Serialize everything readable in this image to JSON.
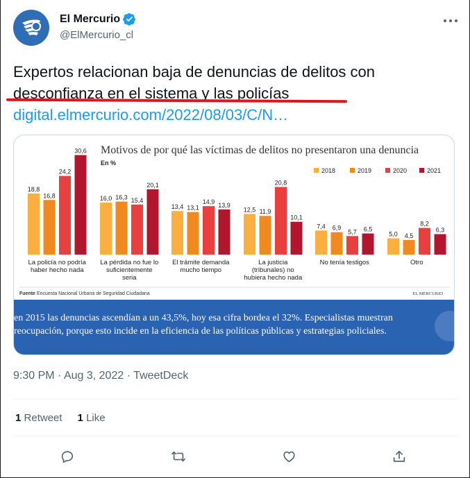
{
  "header": {
    "display_name": "El Mercurio",
    "handle": "@ElMercurio_cl",
    "avatar_icon": "el-mercurio-logo",
    "verified_icon": "verified-badge-icon",
    "more_icon": "more-options-icon",
    "colors": {
      "verified": "#1d9bf0",
      "avatar": "#2f6db5"
    }
  },
  "tweet": {
    "line1": "Expertos relacionan baja de denuncias de delitos con",
    "line2": "desconfianza en el sistema y las policías",
    "link": "digital.elmercurio.com/2022/08/03/C/N…",
    "annotation_color": "#e0141e"
  },
  "infographic": {
    "caption_line1": "en 2015 las denuncias ascendían a un 43,5%, hoy esa cifra bordea el 32%. Especialistas muestran",
    "caption_line2": "reocupación, porque esto incide en la eficiencia de las políticas públicas y estrategias policiales.",
    "source_label": "Fuente",
    "source_text": "Encuesta Nacional Urbana de Seguridad Ciudadana",
    "brand": "EL MERCURIO"
  },
  "chart_data": {
    "type": "bar",
    "title": "Motivos de por qué las víctimas de delitos no presentaron una denuncia",
    "subtitle": "En %",
    "legend_position": "top-right",
    "categories": [
      [
        "La policía no podría",
        "haber hecho nada"
      ],
      [
        "La pérdida no fue lo",
        "suficientemente",
        "seria"
      ],
      [
        "El trámite demanda",
        "mucho tiempo"
      ],
      [
        "La justicia",
        "(tribunales) no",
        "hubiera hecho nada"
      ],
      [
        "No tenía testigos"
      ],
      [
        "Otro"
      ]
    ],
    "series": [
      {
        "name": "2018",
        "color": "#f9b040",
        "values": [
          18.8,
          16.0,
          13.4,
          12.5,
          7.4,
          5.0
        ],
        "labels": [
          "18,8",
          "16,0",
          "13,4",
          "12,5",
          "7,4",
          "5,0"
        ]
      },
      {
        "name": "2019",
        "color": "#f08a1f",
        "values": [
          16.8,
          16.3,
          13.1,
          11.9,
          6.9,
          4.5
        ],
        "labels": [
          "16,8",
          "16,3",
          "13,1",
          "11,9",
          "6,9",
          "4,5"
        ]
      },
      {
        "name": "2020",
        "color": "#e8403f",
        "values": [
          24.2,
          15.4,
          14.9,
          20.8,
          5.7,
          8.2
        ],
        "labels": [
          "24,2",
          "15,4",
          "14,9",
          "20,8",
          "5,7",
          "8,2"
        ]
      },
      {
        "name": "2021",
        "color": "#b0172c",
        "values": [
          30.6,
          20.1,
          13.9,
          10.1,
          6.5,
          6.3
        ],
        "labels": [
          "30,6",
          "20,1",
          "13,9",
          "10,1",
          "6,5",
          "6,3"
        ]
      }
    ],
    "ylim": [
      0,
      32
    ]
  },
  "meta": {
    "time": "9:30 PM",
    "date": "Aug 3, 2022",
    "source": "TweetDeck"
  },
  "stats": {
    "retweets_count": "1",
    "retweets_label": "Retweet",
    "likes_count": "1",
    "likes_label": "Like"
  },
  "actions": {
    "reply_icon": "reply-icon",
    "retweet_icon": "retweet-icon",
    "like_icon": "like-icon",
    "share_icon": "share-icon"
  }
}
